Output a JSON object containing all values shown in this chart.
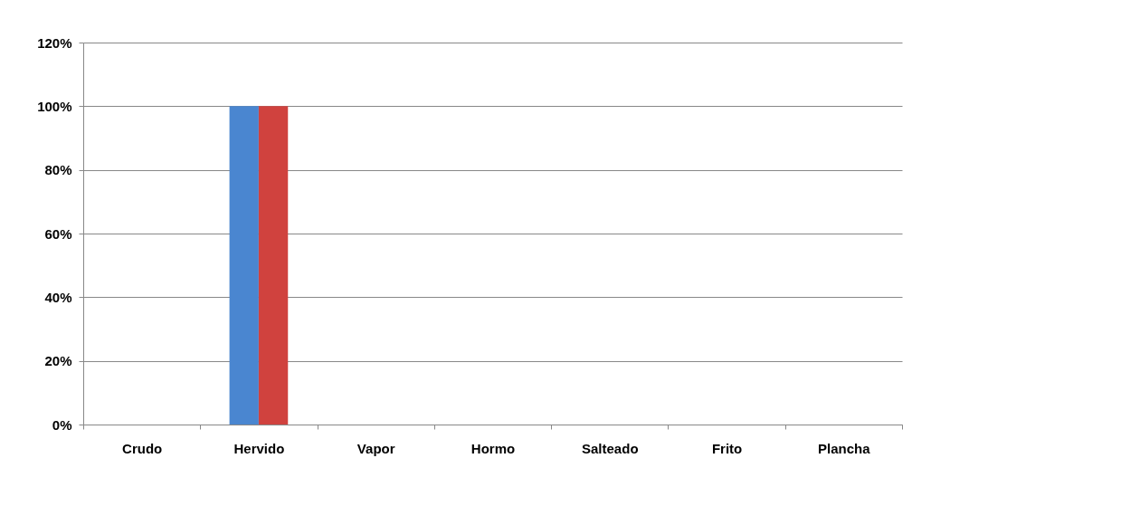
{
  "chart_data": {
    "type": "bar",
    "categories": [
      "Crudo",
      "Hervido",
      "Vapor",
      "Hormo",
      "Salteado",
      "Frito",
      "Plancha"
    ],
    "series": [
      {
        "color": "#4a86d0",
        "values": [
          0,
          100,
          0,
          0,
          0,
          0,
          0
        ]
      },
      {
        "color": "#d0423e",
        "values": [
          0,
          100,
          0,
          0,
          0,
          0,
          0
        ]
      }
    ],
    "ylim": [
      0,
      120
    ],
    "yticks": [
      {
        "value": 0,
        "label": "0%"
      },
      {
        "value": 20,
        "label": "20%"
      },
      {
        "value": 40,
        "label": "40%"
      },
      {
        "value": 60,
        "label": "60%"
      },
      {
        "value": 80,
        "label": "80%"
      },
      {
        "value": 100,
        "label": "100%"
      },
      {
        "value": 120,
        "label": "120%"
      }
    ],
    "grid": "y",
    "legend": false
  }
}
